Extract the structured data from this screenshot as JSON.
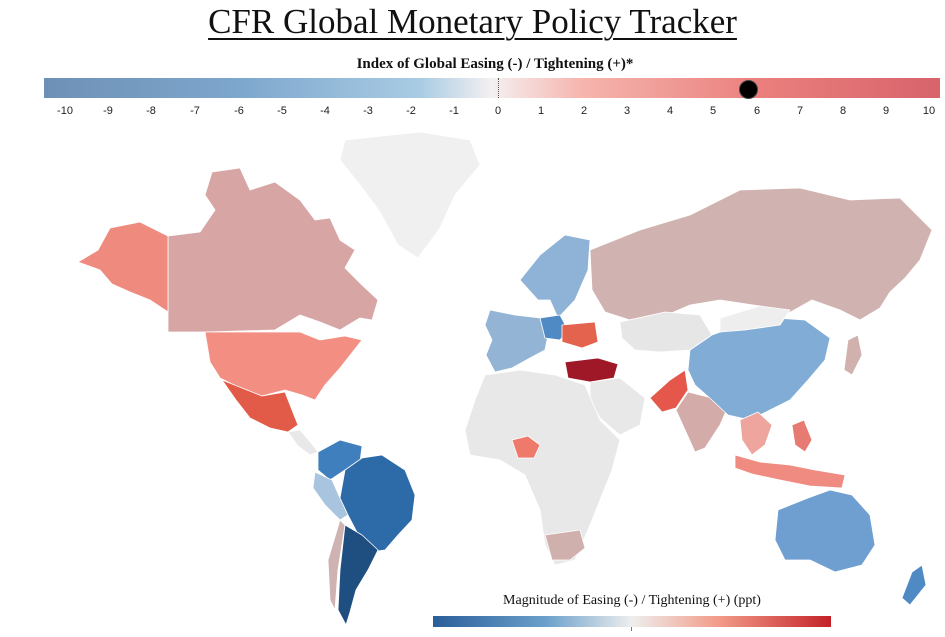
{
  "title": "CFR Global Monetary Policy Tracker",
  "index": {
    "label": "Index of Global Easing (-) / Tightening (+)*",
    "ticks": [
      "-10",
      "-9",
      "-8",
      "-7",
      "-6",
      "-5",
      "-4",
      "-3",
      "-2",
      "-1",
      "0",
      "1",
      "2",
      "3",
      "4",
      "5",
      "6",
      "7",
      "8",
      "9",
      "10"
    ],
    "current_value": 5.8,
    "colors": {
      "easing": "#6e90b6",
      "neutral": "#f4f0f0",
      "tightening": "#d8636b"
    }
  },
  "legend": {
    "label": "Magnitude of Easing (-) / Tightening (+) (ppt)",
    "colors": {
      "easing": "#2a5e99",
      "neutral": "#eeeeee",
      "tightening": "#c42228"
    }
  },
  "regions": [
    {
      "name": "alaska",
      "color": "#ef8a7f"
    },
    {
      "name": "canada",
      "color": "#d7a6a4"
    },
    {
      "name": "greenland",
      "color": "#f0f0f0"
    },
    {
      "name": "united-states",
      "color": "#f28f82"
    },
    {
      "name": "mexico",
      "color": "#e25a48"
    },
    {
      "name": "colombia",
      "color": "#3f7fbd"
    },
    {
      "name": "peru",
      "color": "#a9c4de"
    },
    {
      "name": "brazil",
      "color": "#2c6aa8"
    },
    {
      "name": "chile",
      "color": "#cfb3b2"
    },
    {
      "name": "argentina",
      "color": "#1f4e80"
    },
    {
      "name": "russia",
      "color": "#d0b3b0"
    },
    {
      "name": "scandinavia",
      "color": "#8eb3d7"
    },
    {
      "name": "western-europe",
      "color": "#93b4d4"
    },
    {
      "name": "poland",
      "color": "#4f8ac5"
    },
    {
      "name": "ukraine",
      "color": "#e4634e"
    },
    {
      "name": "turkey",
      "color": "#9e1827"
    },
    {
      "name": "kazakhstan",
      "color": "#e6e6e6"
    },
    {
      "name": "africa",
      "color": "#e8e8e8"
    },
    {
      "name": "nigeria",
      "color": "#ef7a6c"
    },
    {
      "name": "south-africa",
      "color": "#cfb0ad"
    },
    {
      "name": "saudi-arabia",
      "color": "#e8e8e8"
    },
    {
      "name": "pakistan",
      "color": "#e4574a"
    },
    {
      "name": "india",
      "color": "#d3aba8"
    },
    {
      "name": "china",
      "color": "#80acd5"
    },
    {
      "name": "mongolia",
      "color": "#eeeeee"
    },
    {
      "name": "southeast-asia",
      "color": "#eda59d"
    },
    {
      "name": "indonesia",
      "color": "#ef8b80"
    },
    {
      "name": "philippines",
      "color": "#e77a73"
    },
    {
      "name": "japan",
      "color": "#d0b1ae"
    },
    {
      "name": "australia",
      "color": "#6e9fd0"
    },
    {
      "name": "new-zealand",
      "color": "#4f8ac5"
    }
  ]
}
